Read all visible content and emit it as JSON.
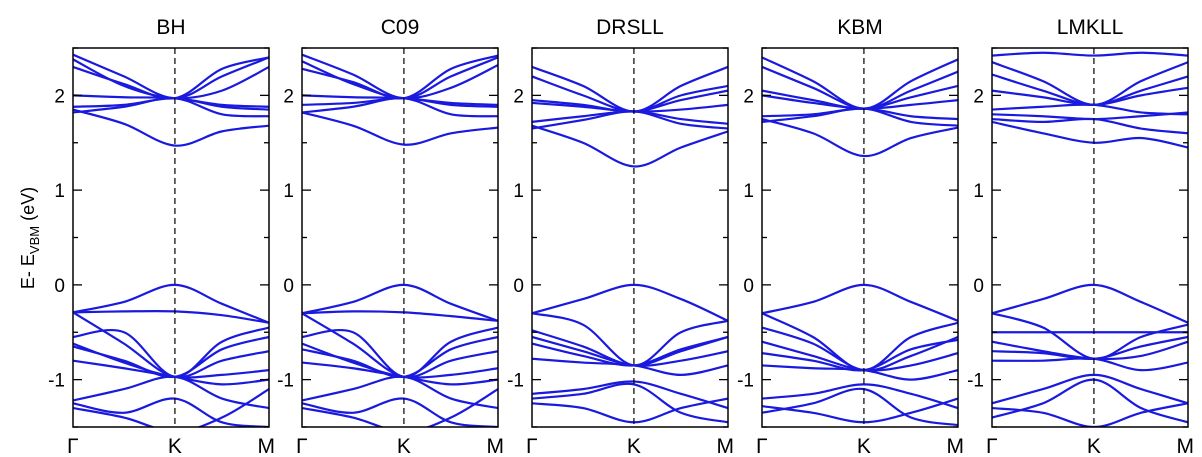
{
  "figure": {
    "ylabel_main": "E- E",
    "ylabel_sub": "VBM",
    "ylabel_unit": " (eV)"
  },
  "colors": {
    "bands": "#1a1adf",
    "axes": "#000000"
  },
  "chart_data": [
    {
      "type": "line",
      "title": "BH",
      "x_ticks": [
        "Γ",
        "K",
        "M"
      ],
      "ylim": [
        -1.5,
        2.5
      ],
      "y_ticks": [
        -1,
        0,
        1,
        2
      ],
      "series": [
        {
          "values": [
            2.43,
            2.2,
            1.97,
            2.2,
            2.4
          ]
        },
        {
          "values": [
            2.38,
            2.1,
            1.97,
            2.05,
            2.3
          ]
        },
        {
          "values": [
            2.3,
            2.12,
            1.97,
            2.28,
            2.4
          ]
        },
        {
          "values": [
            2.0,
            1.98,
            1.97,
            1.9,
            1.88
          ]
        },
        {
          "values": [
            1.88,
            1.9,
            1.97,
            1.88,
            1.85
          ]
        },
        {
          "values": [
            1.82,
            1.88,
            1.97,
            1.8,
            1.78
          ]
        },
        {
          "values": [
            1.85,
            1.7,
            1.47,
            1.62,
            1.68
          ]
        },
        {
          "values": [
            -0.29,
            -0.18,
            0.0,
            -0.2,
            -0.4
          ]
        },
        {
          "values": [
            -0.29,
            -0.28,
            -0.28,
            -0.32,
            -0.4
          ]
        },
        {
          "values": [
            -0.55,
            -0.5,
            -0.97,
            -0.6,
            -0.45
          ]
        },
        {
          "values": [
            -0.29,
            -0.62,
            -0.97,
            -0.8,
            -0.7
          ]
        },
        {
          "values": [
            -0.62,
            -0.82,
            -0.97,
            -0.95,
            -0.9
          ]
        },
        {
          "values": [
            -0.65,
            -0.8,
            -0.97,
            -0.68,
            -0.55
          ]
        },
        {
          "values": [
            -0.8,
            -0.88,
            -0.97,
            -1.05,
            -1.0
          ]
        },
        {
          "values": [
            -1.22,
            -1.1,
            -0.97,
            -1.2,
            -1.3
          ]
        },
        {
          "values": [
            -1.3,
            -1.4,
            -1.55,
            -1.4,
            -1.1
          ]
        },
        {
          "values": [
            -1.25,
            -1.35,
            -1.2,
            -1.45,
            -1.5
          ]
        }
      ]
    },
    {
      "type": "line",
      "title": "C09",
      "x_ticks": [
        "Γ",
        "K",
        "M"
      ],
      "ylim": [
        -1.5,
        2.5
      ],
      "y_ticks": [
        -1,
        0,
        1,
        2
      ],
      "series": [
        {
          "values": [
            2.43,
            2.22,
            1.97,
            2.2,
            2.4
          ]
        },
        {
          "values": [
            2.36,
            2.12,
            1.97,
            2.08,
            2.32
          ]
        },
        {
          "values": [
            2.28,
            2.14,
            1.97,
            2.28,
            2.42
          ]
        },
        {
          "values": [
            2.0,
            1.98,
            1.97,
            1.92,
            1.9
          ]
        },
        {
          "values": [
            1.9,
            1.92,
            1.97,
            1.9,
            1.88
          ]
        },
        {
          "values": [
            1.82,
            1.88,
            1.97,
            1.8,
            1.78
          ]
        },
        {
          "values": [
            1.82,
            1.68,
            1.48,
            1.6,
            1.66
          ]
        },
        {
          "values": [
            -0.3,
            -0.18,
            0.0,
            -0.2,
            -0.38
          ]
        },
        {
          "values": [
            -0.3,
            -0.28,
            -0.29,
            -0.33,
            -0.38
          ]
        },
        {
          "values": [
            -0.55,
            -0.5,
            -0.97,
            -0.6,
            -0.45
          ]
        },
        {
          "values": [
            -0.3,
            -0.62,
            -0.97,
            -0.8,
            -0.7
          ]
        },
        {
          "values": [
            -0.62,
            -0.82,
            -0.97,
            -0.95,
            -0.88
          ]
        },
        {
          "values": [
            -0.68,
            -0.8,
            -0.97,
            -0.68,
            -0.55
          ]
        },
        {
          "values": [
            -0.82,
            -0.88,
            -0.97,
            -1.05,
            -1.0
          ]
        },
        {
          "values": [
            -1.22,
            -1.1,
            -0.97,
            -1.2,
            -1.3
          ]
        },
        {
          "values": [
            -1.3,
            -1.4,
            -1.55,
            -1.4,
            -1.1
          ]
        },
        {
          "values": [
            -1.25,
            -1.35,
            -1.2,
            -1.45,
            -1.5
          ]
        }
      ]
    },
    {
      "type": "line",
      "title": "DRSLL",
      "x_ticks": [
        "Γ",
        "K",
        "M"
      ],
      "ylim": [
        -1.5,
        2.5
      ],
      "y_ticks": [
        -1,
        0,
        1,
        2
      ],
      "series": [
        {
          "values": [
            2.3,
            2.1,
            1.83,
            2.1,
            2.3
          ]
        },
        {
          "values": [
            2.2,
            2.0,
            1.83,
            2.0,
            2.1
          ]
        },
        {
          "values": [
            1.95,
            1.9,
            1.83,
            1.95,
            2.05
          ]
        },
        {
          "values": [
            1.92,
            1.88,
            1.83,
            1.85,
            1.9
          ]
        },
        {
          "values": [
            1.72,
            1.78,
            1.83,
            1.75,
            1.7
          ]
        },
        {
          "values": [
            1.65,
            1.74,
            1.83,
            1.7,
            1.65
          ]
        },
        {
          "values": [
            1.68,
            1.5,
            1.25,
            1.45,
            1.62
          ]
        },
        {
          "values": [
            -0.3,
            -0.15,
            0.0,
            -0.15,
            -0.38
          ]
        },
        {
          "values": [
            -0.3,
            -0.42,
            -0.85,
            -0.5,
            -0.38
          ]
        },
        {
          "values": [
            -0.48,
            -0.65,
            -0.85,
            -0.7,
            -0.55
          ]
        },
        {
          "values": [
            -0.55,
            -0.7,
            -0.85,
            -0.8,
            -0.7
          ]
        },
        {
          "values": [
            -0.62,
            -0.75,
            -0.85,
            -0.68,
            -0.55
          ]
        },
        {
          "values": [
            -0.78,
            -0.82,
            -0.85,
            -0.95,
            -0.85
          ]
        },
        {
          "values": [
            -1.15,
            -1.1,
            -1.02,
            -1.15,
            -1.3
          ]
        },
        {
          "values": [
            -1.25,
            -1.3,
            -1.45,
            -1.3,
            -1.2
          ]
        },
        {
          "values": [
            -1.2,
            -1.15,
            -1.05,
            -1.35,
            -1.45
          ]
        }
      ]
    },
    {
      "type": "line",
      "title": "KBM",
      "x_ticks": [
        "Γ",
        "K",
        "M"
      ],
      "ylim": [
        -1.5,
        2.5
      ],
      "y_ticks": [
        -1,
        0,
        1,
        2
      ],
      "series": [
        {
          "values": [
            2.4,
            2.15,
            1.86,
            2.15,
            2.38
          ]
        },
        {
          "values": [
            2.3,
            2.08,
            1.86,
            2.05,
            2.25
          ]
        },
        {
          "values": [
            2.05,
            1.95,
            1.86,
            1.98,
            2.1
          ]
        },
        {
          "values": [
            2.0,
            1.92,
            1.86,
            1.9,
            1.95
          ]
        },
        {
          "values": [
            1.78,
            1.8,
            1.86,
            1.78,
            1.75
          ]
        },
        {
          "values": [
            1.72,
            1.78,
            1.86,
            1.72,
            1.68
          ]
        },
        {
          "values": [
            1.75,
            1.6,
            1.36,
            1.55,
            1.66
          ]
        },
        {
          "values": [
            -0.3,
            -0.18,
            0.0,
            -0.18,
            -0.38
          ]
        },
        {
          "values": [
            -0.3,
            -0.55,
            -0.9,
            -0.55,
            -0.4
          ]
        },
        {
          "values": [
            -0.45,
            -0.62,
            -0.9,
            -0.75,
            -0.55
          ]
        },
        {
          "values": [
            -0.6,
            -0.75,
            -0.9,
            -0.85,
            -0.72
          ]
        },
        {
          "values": [
            -0.72,
            -0.8,
            -0.9,
            -0.68,
            -0.58
          ]
        },
        {
          "values": [
            -0.85,
            -0.88,
            -0.9,
            -1.0,
            -0.9
          ]
        },
        {
          "values": [
            -1.2,
            -1.15,
            -1.05,
            -1.15,
            -1.3
          ]
        },
        {
          "values": [
            -1.28,
            -1.35,
            -1.45,
            -1.35,
            -1.2
          ]
        },
        {
          "values": [
            -1.35,
            -1.25,
            -1.1,
            -1.4,
            -1.48
          ]
        }
      ]
    },
    {
      "type": "line",
      "title": "LMKLL",
      "x_ticks": [
        "Γ",
        "K",
        "M"
      ],
      "ylim": [
        -1.5,
        2.5
      ],
      "y_ticks": [
        -1,
        0,
        1,
        2
      ],
      "series": [
        {
          "values": [
            2.42,
            2.45,
            2.42,
            2.45,
            2.42
          ]
        },
        {
          "values": [
            2.35,
            2.15,
            1.9,
            2.15,
            2.35
          ]
        },
        {
          "values": [
            2.22,
            2.05,
            1.9,
            2.05,
            2.2
          ]
        },
        {
          "values": [
            2.05,
            1.98,
            1.9,
            2.0,
            2.08
          ]
        },
        {
          "values": [
            1.85,
            1.88,
            1.9,
            1.82,
            1.8
          ]
        },
        {
          "values": [
            1.8,
            1.78,
            1.75,
            1.78,
            1.82
          ]
        },
        {
          "values": [
            1.75,
            1.72,
            1.75,
            1.65,
            1.6
          ]
        },
        {
          "values": [
            1.72,
            1.6,
            1.5,
            1.55,
            1.45
          ]
        },
        {
          "values": [
            -0.3,
            -0.15,
            0.0,
            -0.18,
            -0.4
          ]
        },
        {
          "values": [
            -0.3,
            -0.45,
            -0.78,
            -0.55,
            -0.42
          ]
        },
        {
          "values": [
            -0.5,
            -0.5,
            -0.5,
            -0.5,
            -0.5
          ]
        },
        {
          "values": [
            -0.6,
            -0.7,
            -0.78,
            -0.75,
            -0.6
          ]
        },
        {
          "values": [
            -0.7,
            -0.72,
            -0.78,
            -0.65,
            -0.55
          ]
        },
        {
          "values": [
            -0.8,
            -0.8,
            -0.78,
            -0.9,
            -0.82
          ]
        },
        {
          "values": [
            -1.25,
            -1.1,
            -0.95,
            -1.1,
            -1.25
          ]
        },
        {
          "values": [
            -1.3,
            -1.35,
            -1.5,
            -1.35,
            -1.25
          ]
        },
        {
          "values": [
            -1.4,
            -1.25,
            -1.0,
            -1.3,
            -1.45
          ]
        }
      ]
    }
  ]
}
